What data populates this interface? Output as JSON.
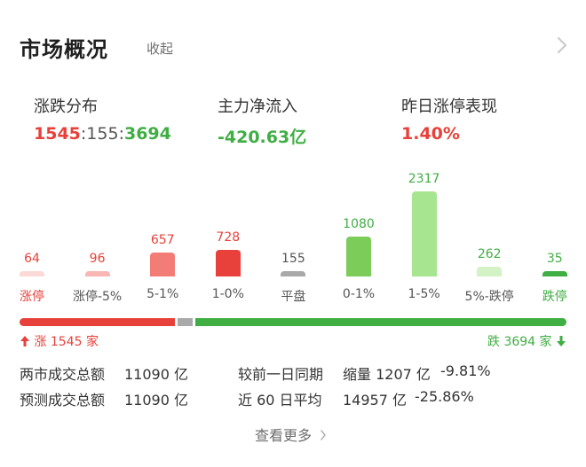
{
  "header": {
    "title": "市场概况",
    "collapse_label": "收起"
  },
  "stats": {
    "distribution": {
      "label": "涨跌分布",
      "up": "1545",
      "sep1": ":",
      "flat": "155",
      "sep2": ":",
      "down": "3694"
    },
    "net_flow": {
      "label": "主力净流入",
      "value": "-420.63亿"
    },
    "limit_up_perf": {
      "label": "昨日涨停表现",
      "value": "1.40%"
    }
  },
  "chart_data": {
    "type": "bar",
    "categories": [
      "涨停",
      "涨停-5%",
      "5-1%",
      "1-0%",
      "平盘",
      "0-1%",
      "1-5%",
      "5%-跌停",
      "跌停"
    ],
    "values": [
      64,
      96,
      657,
      728,
      155,
      1080,
      2317,
      262,
      35
    ],
    "value_labels": [
      "64",
      "96",
      "657",
      "728",
      "155",
      "1080",
      "2317",
      "262",
      "35"
    ],
    "colors": [
      "#fbd9d7",
      "#f8b7b3",
      "#f47c76",
      "#e8403a",
      "#a9a9a9",
      "#7ccc5a",
      "#a7e591",
      "#d3f2c6",
      "#3fae43"
    ],
    "label_colors": [
      "#e8403a",
      "#e8403a",
      "#e8403a",
      "#e8403a",
      "#555555",
      "#3fae43",
      "#3fae43",
      "#3fae43",
      "#3fae43"
    ],
    "category_colors": [
      "#e8403a",
      "#555555",
      "#555555",
      "#555555",
      "#555555",
      "#555555",
      "#555555",
      "#555555",
      "#3fae43"
    ]
  },
  "progress": {
    "up_count": 1545,
    "flat_count": 155,
    "down_count": 3694,
    "up_label": "涨 1545 家",
    "down_label": "跌 3694 家",
    "up_color": "#e8403a",
    "flat_color": "#a9a9a9",
    "down_color": "#3fae43"
  },
  "volume": {
    "row1": {
      "label": "两市成交总额",
      "value": "11090 亿",
      "compare_label": "较前一日同期",
      "change_desc": "缩量 1207 亿",
      "change_pct": "-9.81%"
    },
    "row2": {
      "label": "预测成交总额",
      "value": "11090 亿",
      "compare_label": "近 60 日平均",
      "avg_value": "14957 亿",
      "change_pct": "-25.86%"
    }
  },
  "footer": {
    "more_label": "查看更多"
  }
}
